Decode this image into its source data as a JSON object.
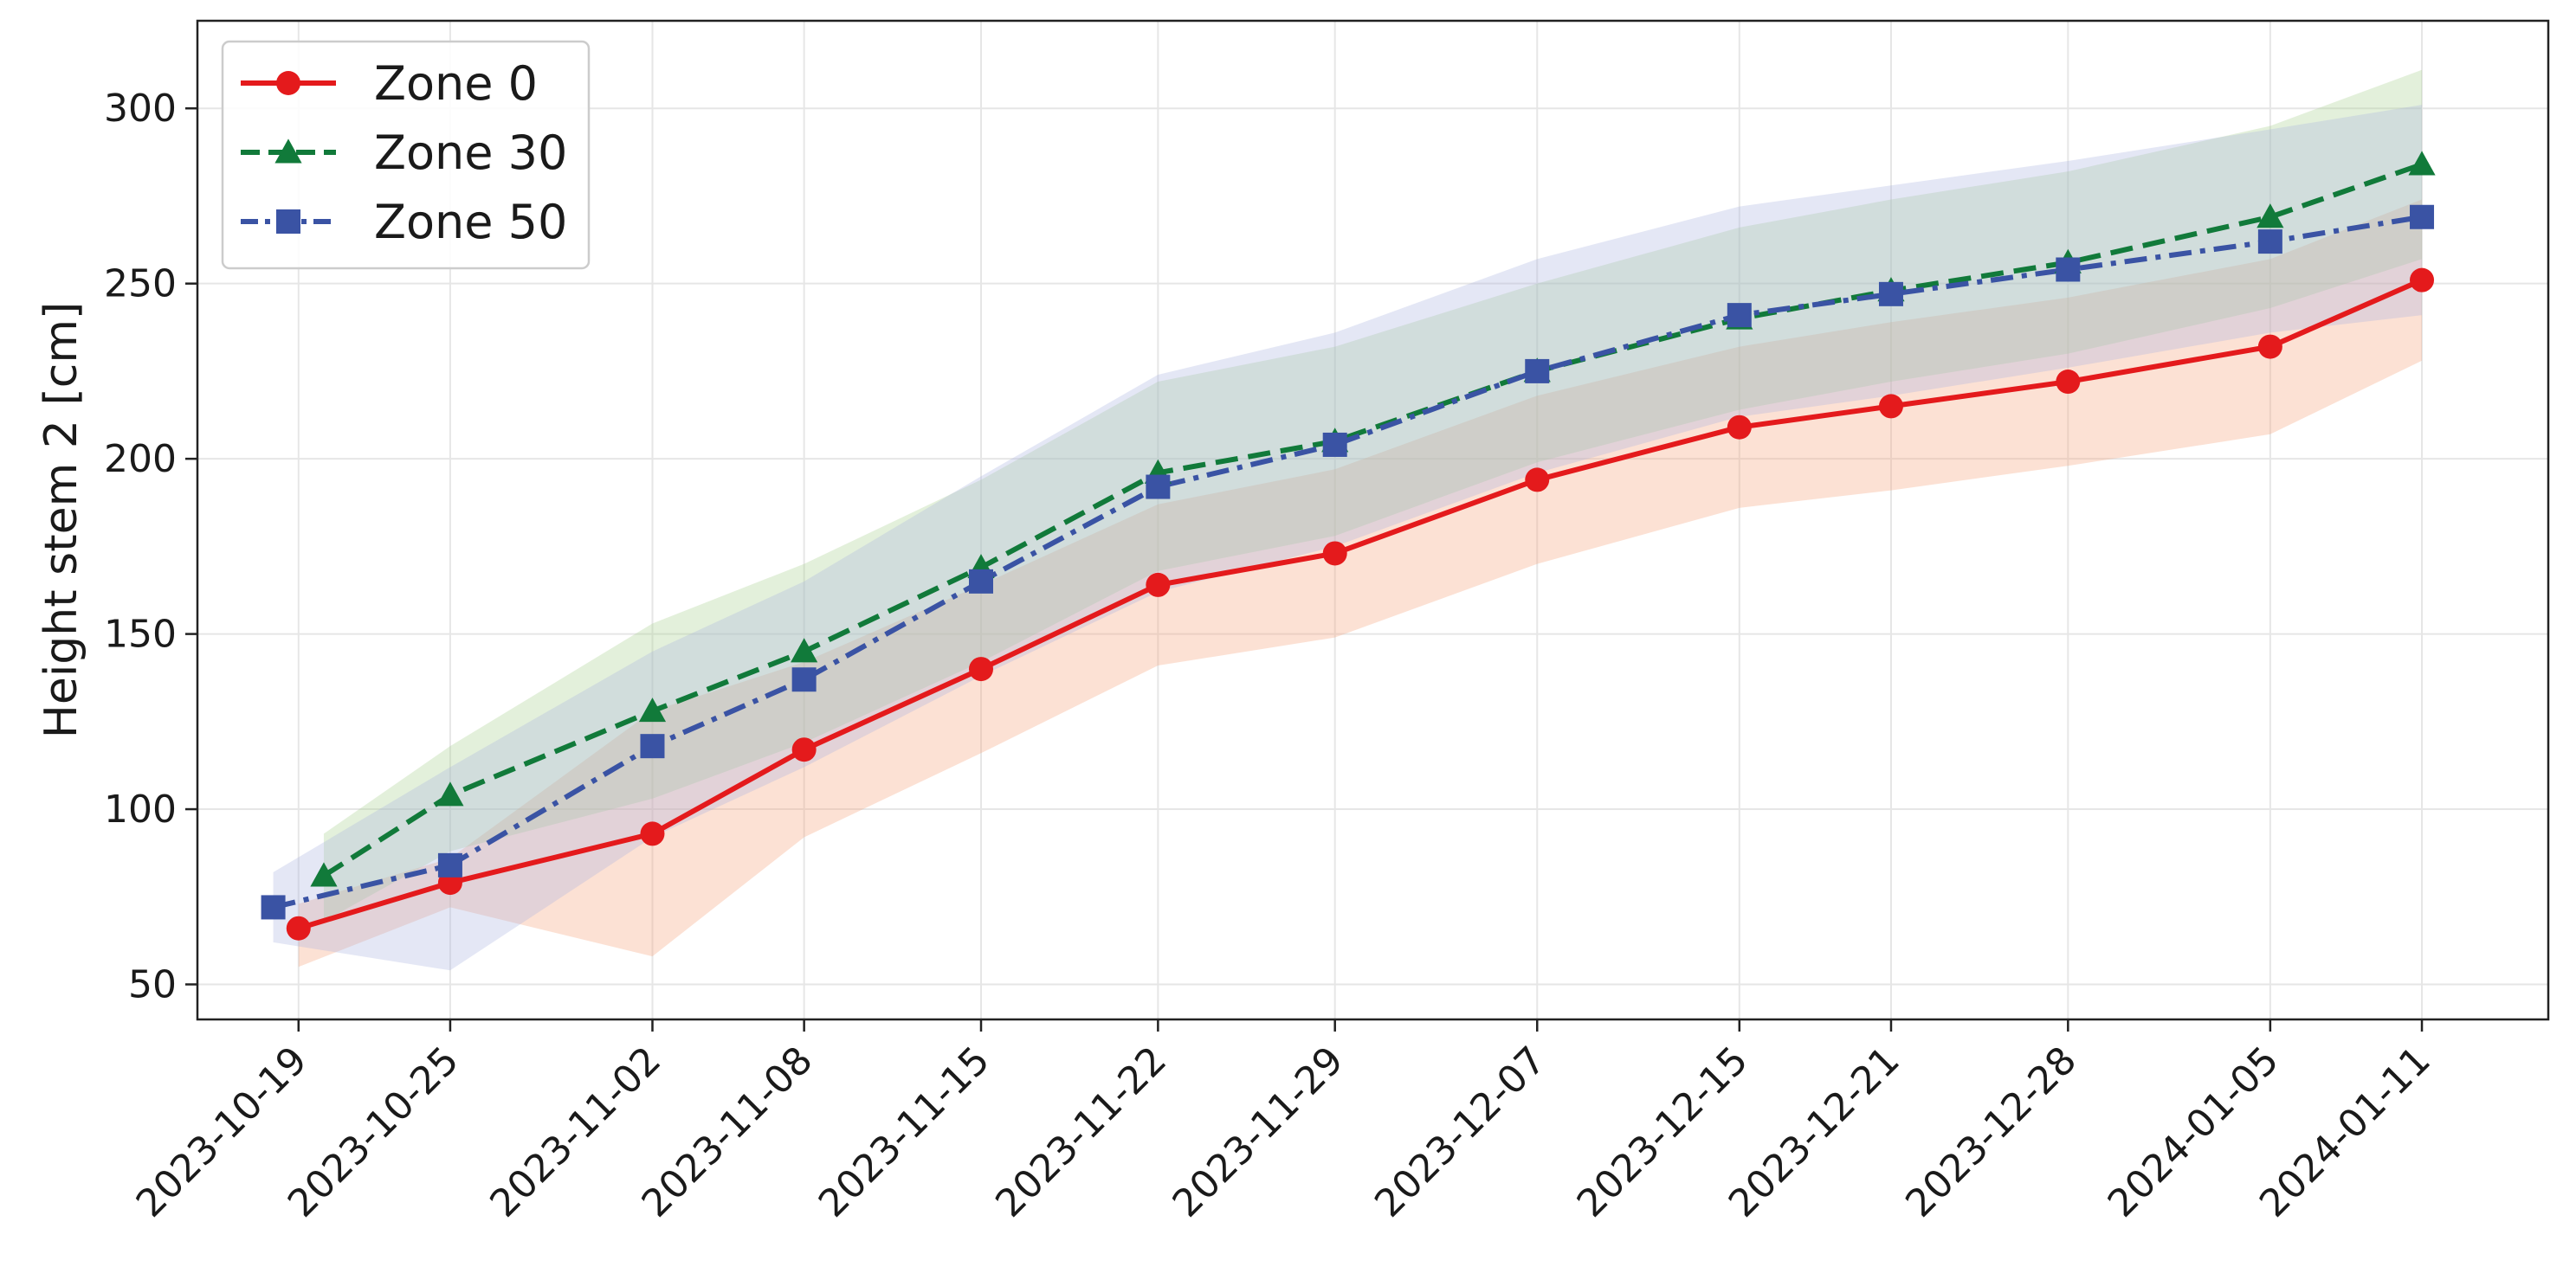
{
  "chart_data": {
    "type": "line",
    "title": "",
    "xlabel": "",
    "ylabel": "Height stem 2 [cm]",
    "ylim": [
      40,
      325
    ],
    "yticks": [
      50,
      100,
      150,
      200,
      250,
      300
    ],
    "xlim": [
      "2023-10-15",
      "2024-01-16"
    ],
    "grid": true,
    "legend_position": "top-left",
    "x_ticks": [
      "2023-10-19",
      "2023-10-25",
      "2023-11-02",
      "2023-11-08",
      "2023-11-15",
      "2023-11-22",
      "2023-11-29",
      "2023-12-07",
      "2023-12-15",
      "2023-12-21",
      "2023-12-28",
      "2024-01-05",
      "2024-01-11"
    ],
    "series": [
      {
        "name": "Zone 0",
        "color": "#e41a1c",
        "band_color": "#f7a278",
        "dash": "solid",
        "marker": "circle",
        "x": [
          "2023-10-19",
          "2023-10-25",
          "2023-11-02",
          "2023-11-08",
          "2023-11-15",
          "2023-11-22",
          "2023-11-29",
          "2023-12-07",
          "2023-12-15",
          "2023-12-21",
          "2023-12-28",
          "2024-01-05",
          "2024-01-11"
        ],
        "values": [
          66,
          79,
          93,
          117,
          140,
          164,
          173,
          194,
          209,
          215,
          222,
          232,
          251
        ],
        "lower": [
          55,
          72,
          58,
          92,
          116,
          141,
          149,
          170,
          186,
          191,
          198,
          207,
          228
        ],
        "upper": [
          73,
          86,
          128,
          142,
          164,
          187,
          197,
          218,
          232,
          239,
          246,
          257,
          274
        ]
      },
      {
        "name": "Zone 30",
        "color": "#117a3a",
        "band_color": "#a9cf8e",
        "dash": "dashed",
        "marker": "triangle",
        "x": [
          "2023-10-20",
          "2023-10-25",
          "2023-11-02",
          "2023-11-08",
          "2023-11-15",
          "2023-11-22",
          "2023-11-29",
          "2023-12-07",
          "2023-12-15",
          "2023-12-21",
          "2023-12-28",
          "2024-01-05",
          "2024-01-11"
        ],
        "values": [
          81,
          104,
          128,
          145,
          169,
          196,
          205,
          225,
          240,
          248,
          256,
          269,
          284
        ],
        "lower": [
          68,
          88,
          103,
          119,
          142,
          168,
          178,
          199,
          214,
          222,
          230,
          243,
          257
        ],
        "upper": [
          93,
          118,
          153,
          170,
          194,
          222,
          232,
          250,
          266,
          274,
          282,
          295,
          311
        ]
      },
      {
        "name": "Zone 50",
        "color": "#3a53a4",
        "band_color": "#aab3e0",
        "dash": "dashdot",
        "marker": "square",
        "x": [
          "2023-10-18",
          "2023-10-25",
          "2023-11-02",
          "2023-11-08",
          "2023-11-15",
          "2023-11-22",
          "2023-11-29",
          "2023-12-07",
          "2023-12-15",
          "2023-12-21",
          "2023-12-28",
          "2024-01-05",
          "2024-01-11"
        ],
        "values": [
          72,
          84,
          118,
          137,
          165,
          192,
          204,
          225,
          241,
          247,
          254,
          262,
          269
        ],
        "lower": [
          62,
          54,
          92,
          112,
          138,
          162,
          175,
          196,
          212,
          218,
          226,
          236,
          241
        ],
        "upper": [
          82,
          112,
          145,
          165,
          195,
          224,
          236,
          257,
          272,
          278,
          285,
          294,
          301
        ]
      }
    ]
  }
}
